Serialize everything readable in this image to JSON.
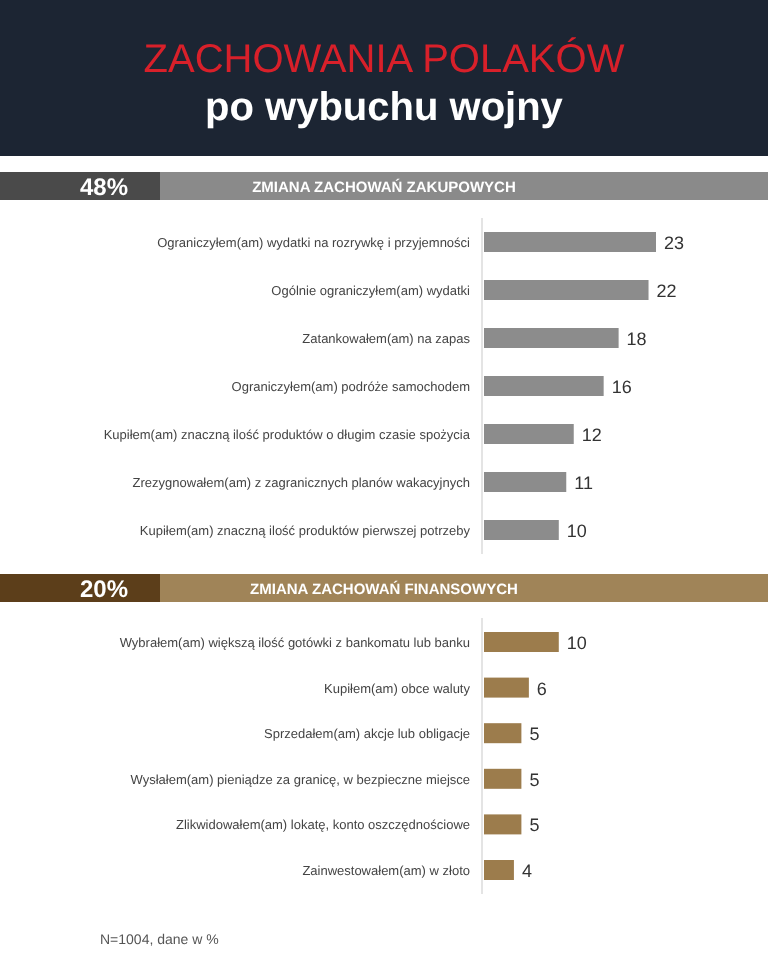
{
  "chart_data": [
    {
      "type": "other",
      "title": "ZACHOWANIA POLAKÓW",
      "subtitle": "po wybuchu wojny"
    },
    {
      "type": "bar",
      "orientation": "horizontal",
      "title": "ZMIANA ZACHOWAŃ ZAKUPOWYCH",
      "subtitle": "48%",
      "categories": [
        "Ograniczyłem(am) wydatki na rozrywkę i przyjemności",
        "Ogólnie ograniczyłem(am) wydatki",
        "Zatankowałem(am) na zapas",
        "Ograniczyłem(am) podróże samochodem",
        "Kupiłem(am) znaczną ilość produktów o długim czasie spożycia",
        "Zrezygnowałem(am) z zagranicznych planów wakacyjnych",
        "Kupiłem(am) znaczną ilość produktów pierwszej potrzeby"
      ],
      "values": [
        23,
        22,
        18,
        16,
        12,
        11,
        10
      ],
      "color": "#8c8c8c",
      "data_labels": true
    },
    {
      "type": "bar",
      "orientation": "horizontal",
      "title": "ZMIANA ZACHOWAŃ FINANSOWYCH",
      "subtitle": "20%",
      "categories": [
        "Wybrałem(am) większą ilość gotówki z bankomatu lub banku",
        "Kupiłem(am) obce waluty",
        "Sprzedałem(am) akcje lub obligacje",
        "Wysłałem(am) pieniądze za granicę, w bezpieczne miejsce",
        "Zlikwidowałem(am) lokatę, konto oszczędnościowe",
        "Zainwestowałem(am) w złoto"
      ],
      "values": [
        10,
        6,
        5,
        5,
        5,
        4
      ],
      "color": "#9c7c4c",
      "data_labels": true,
      "annotations": [
        "N=1004, dane w %"
      ]
    }
  ]
}
